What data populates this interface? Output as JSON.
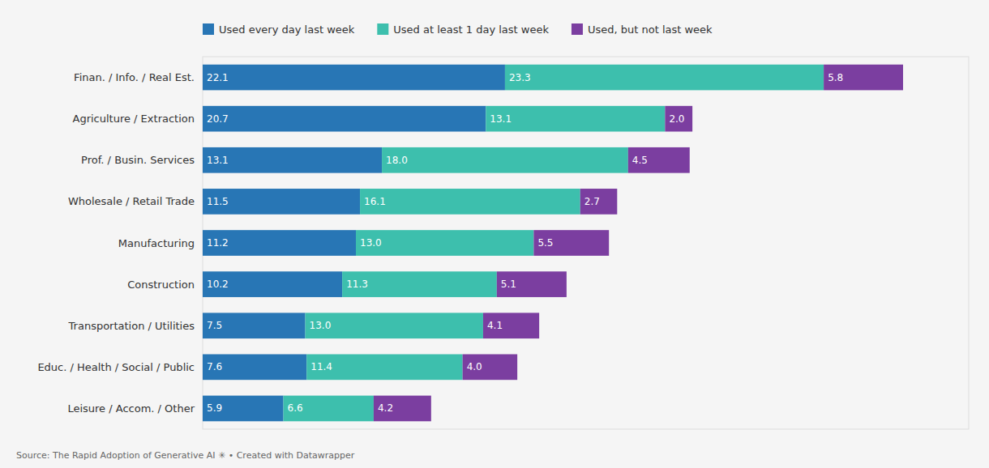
{
  "chart_data": {
    "type": "bar",
    "orientation": "horizontal",
    "stacked": true,
    "data_labels": true,
    "tick_labels": "y",
    "legend": "top-left",
    "categories": [
      "Finan. / Info. / Real Est.",
      "Agriculture / Extraction",
      "Prof. / Busin. Services",
      "Wholesale / Retail Trade",
      "Manufacturing",
      "Construction",
      "Transportation / Utilities",
      "Educ. / Health / Social / Public",
      "Leisure / Accom. / Other"
    ],
    "series": [
      {
        "name": "Used every day last week",
        "color": "#2876b5",
        "values": [
          22.1,
          20.7,
          13.1,
          11.5,
          11.2,
          10.2,
          7.5,
          7.6,
          5.9
        ],
        "value_labels": [
          "22.1",
          "20.7",
          "13.1",
          "11.5",
          "11.2",
          "10.2",
          "7.5",
          "7.6",
          "5.9"
        ]
      },
      {
        "name": "Used at least 1 day last week",
        "color": "#3dbfad",
        "values": [
          23.3,
          13.1,
          18.0,
          16.1,
          13.0,
          11.3,
          13.0,
          11.4,
          6.6
        ],
        "value_labels": [
          "23.3",
          "13.1",
          "18.0",
          "16.1",
          "13.0",
          "11.3",
          "13.0",
          "11.4",
          "6.6"
        ]
      },
      {
        "name": "Used, but not last week",
        "color": "#7b3ea0",
        "values": [
          5.8,
          2.0,
          4.5,
          2.7,
          5.5,
          5.1,
          4.1,
          4.0,
          4.2
        ],
        "value_labels": [
          "5.8",
          "2.0",
          "4.5",
          "2.7",
          "5.5",
          "5.1",
          "4.1",
          "4.0",
          "4.2"
        ]
      }
    ],
    "xlim": [
      0,
      56
    ],
    "annotations": [
      "Source: The Rapid Adoption of Generative AI ✳ • Created with Datawrapper"
    ]
  }
}
